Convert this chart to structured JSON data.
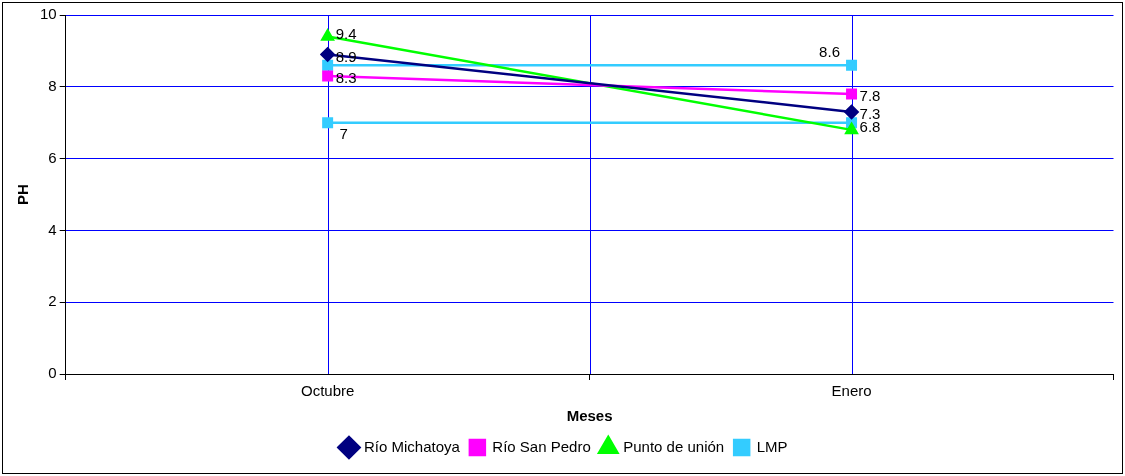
{
  "chart_data": {
    "type": "line",
    "xlabel": "Meses",
    "ylabel": "PH",
    "categories": [
      "Octubre",
      "Enero"
    ],
    "ylim": [
      0,
      10
    ],
    "yticks": [
      0,
      2,
      4,
      6,
      8,
      10
    ],
    "grid": true,
    "legend": "bottom",
    "data_labels": true,
    "series": [
      {
        "name": "Río Michatoya",
        "color": "#000080",
        "marker": "diamond",
        "values": [
          8.9,
          7.3
        ]
      },
      {
        "name": "Río San Pedro",
        "color": "#ff00ff",
        "marker": "square",
        "values": [
          8.3,
          7.8
        ]
      },
      {
        "name": "Punto de unión",
        "color": "#00ff00",
        "marker": "triangle",
        "values": [
          9.4,
          6.8
        ]
      },
      {
        "name": "LMP",
        "color": "#33ccff",
        "marker": "square",
        "values": [
          8.6,
          8.6
        ],
        "value_labels": [
          null,
          "8.6"
        ]
      },
      {
        "color": "#33ccff",
        "marker": "square",
        "values": [
          7,
          7
        ],
        "value_labels": [
          "7",
          null
        ]
      }
    ]
  }
}
